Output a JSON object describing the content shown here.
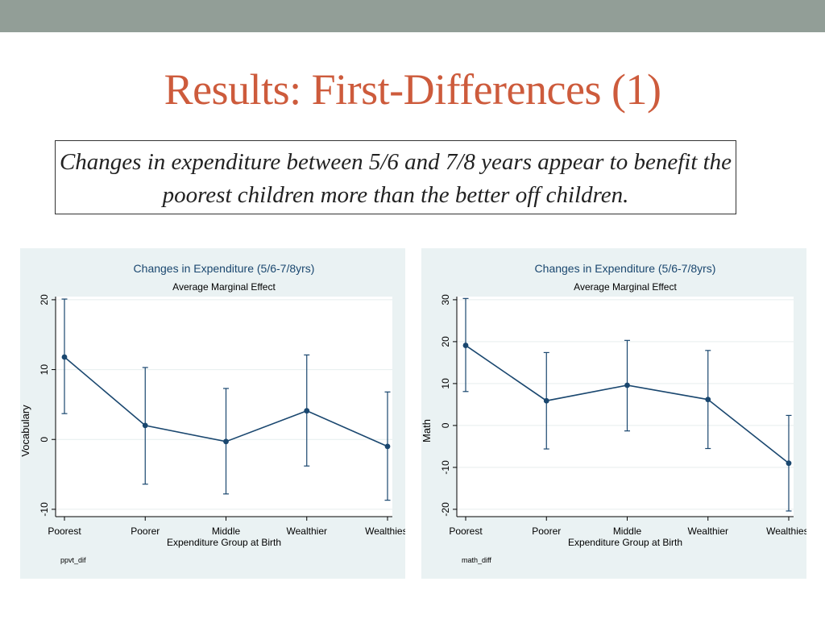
{
  "slide": {
    "title": "Results: First-Differences (1)",
    "caption": "Changes in expenditure between 5/6 and 7/8 years appear to benefit the poorest children more than the better off children."
  },
  "colors": {
    "accent_title": "#cd5b3c",
    "top_bar": "#929e97",
    "panel_bg": "#eaf2f3",
    "series": "#1a476f"
  },
  "chart_data": [
    {
      "type": "line",
      "title": "Changes in Expenditure (5/6-7/8yrs)",
      "subtitle": "Average Marginal Effect",
      "xlabel": "Expenditure Group at Birth",
      "ylabel": "Vocabulary",
      "note": "ppvt_dif",
      "categories": [
        "Poorest",
        "Poorer",
        "Middle",
        "Wealthier",
        "Wealthiest"
      ],
      "ylim": [
        -10,
        20
      ],
      "yticks": [
        -10,
        0,
        10,
        20
      ],
      "grid": true,
      "series": [
        {
          "values": [
            11.8,
            2.0,
            -0.3,
            4.1,
            -1.0
          ],
          "ci_low": [
            3.7,
            -6.4,
            -7.8,
            -3.8,
            -8.7
          ],
          "ci_high": [
            20.1,
            10.3,
            7.3,
            12.1,
            6.8
          ]
        }
      ]
    },
    {
      "type": "line",
      "title": "Changes in Expenditure (5/6-7/8yrs)",
      "subtitle": "Average Marginal Effect",
      "xlabel": "Expenditure Group at Birth",
      "ylabel": "Math",
      "note": "math_diff",
      "categories": [
        "Poorest",
        "Poorer",
        "Middle",
        "Wealthier",
        "Wealthiest"
      ],
      "ylim": [
        -20,
        30
      ],
      "yticks": [
        -20,
        -10,
        0,
        10,
        20,
        30
      ],
      "grid": true,
      "series": [
        {
          "values": [
            19.1,
            5.9,
            9.6,
            6.2,
            -9.0
          ],
          "ci_low": [
            8.1,
            -5.6,
            -1.3,
            -5.5,
            -20.4
          ],
          "ci_high": [
            30.3,
            17.4,
            20.3,
            17.9,
            2.4
          ]
        }
      ]
    }
  ]
}
